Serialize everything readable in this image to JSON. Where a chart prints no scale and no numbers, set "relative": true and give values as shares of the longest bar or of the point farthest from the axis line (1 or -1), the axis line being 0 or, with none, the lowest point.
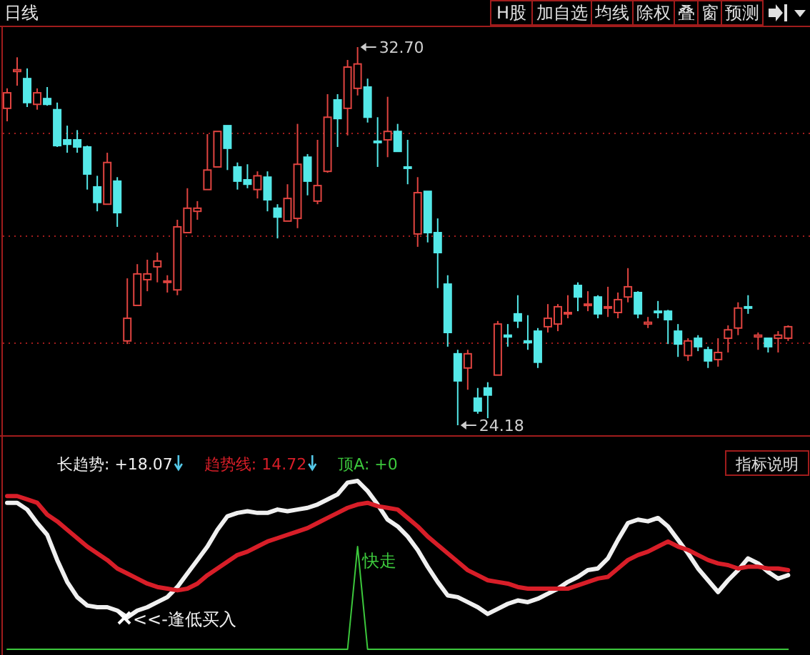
{
  "chart_data": [
    {
      "type": "candlestick",
      "title": "日线",
      "categories": [
        null,
        null,
        null,
        null,
        null,
        null,
        null,
        null,
        null,
        null,
        null,
        null,
        null,
        null,
        null,
        null,
        null,
        null,
        null,
        null,
        null,
        null,
        null,
        null,
        null,
        null,
        null,
        null,
        null,
        null,
        null,
        null,
        null,
        null,
        null,
        null,
        null,
        null,
        null,
        null,
        null,
        null,
        null,
        null,
        null,
        null,
        null,
        null,
        null,
        null,
        null,
        null,
        null,
        null,
        null,
        null,
        null,
        null,
        null,
        null,
        null,
        null,
        null,
        null,
        null,
        null,
        null,
        null,
        null,
        null,
        null,
        null,
        null,
        null,
        null,
        null,
        null,
        null,
        null
      ],
      "ohlc": [
        [
          31.32,
          31.77,
          31.03,
          31.67
        ],
        [
          32.15,
          32.47,
          31.83,
          32.19
        ],
        [
          31.99,
          32.22,
          31.35,
          31.45
        ],
        [
          31.41,
          31.77,
          31.29,
          31.67
        ],
        [
          31.54,
          31.8,
          31.38,
          31.41
        ],
        [
          31.29,
          31.45,
          30.45,
          30.48
        ],
        [
          30.61,
          30.93,
          30.32,
          30.51
        ],
        [
          30.61,
          30.83,
          30.32,
          30.45
        ],
        [
          30.45,
          30.48,
          29.49,
          29.84
        ],
        [
          29.55,
          29.8,
          29.0,
          29.2
        ],
        [
          29.16,
          30.32,
          29.16,
          30.1
        ],
        [
          29.68,
          29.77,
          28.65,
          28.97
        ],
        [
          26.08,
          27.49,
          26.01,
          26.59
        ],
        [
          26.88,
          27.81,
          26.88,
          27.59
        ],
        [
          27.46,
          27.91,
          27.2,
          27.59
        ],
        [
          27.75,
          28.07,
          27.4,
          27.88
        ],
        [
          27.4,
          27.56,
          27.17,
          27.43
        ],
        [
          27.23,
          28.81,
          27.11,
          28.65
        ],
        [
          28.52,
          29.52,
          28.52,
          29.07
        ],
        [
          29.0,
          29.23,
          28.81,
          29.07
        ],
        [
          29.49,
          30.74,
          29.49,
          29.93
        ],
        [
          30.0,
          30.8,
          30.0,
          30.8
        ],
        [
          30.93,
          30.93,
          29.93,
          30.42
        ],
        [
          30.0,
          30.1,
          29.49,
          29.68
        ],
        [
          29.71,
          30.06,
          29.52,
          29.61
        ],
        [
          29.49,
          29.9,
          29.29,
          29.8
        ],
        [
          29.77,
          29.9,
          29.0,
          29.26
        ],
        [
          29.07,
          29.16,
          28.39,
          28.87
        ],
        [
          28.78,
          29.61,
          28.78,
          29.29
        ],
        [
          28.84,
          30.97,
          28.62,
          30.06
        ],
        [
          30.22,
          30.29,
          29.36,
          29.68
        ],
        [
          29.23,
          30.61,
          29.16,
          29.58
        ],
        [
          29.9,
          31.64,
          29.87,
          31.12
        ],
        [
          31.51,
          31.64,
          30.45,
          31.09
        ],
        [
          31.32,
          32.41,
          30.71,
          32.25
        ],
        [
          31.77,
          32.7,
          31.61,
          32.32
        ],
        [
          31.8,
          31.99,
          31.0,
          31.12
        ],
        [
          30.58,
          31.12,
          30.0,
          30.55
        ],
        [
          30.61,
          31.58,
          30.22,
          30.8
        ],
        [
          30.8,
          30.97,
          30.35,
          30.35
        ],
        [
          30.0,
          30.61,
          29.61,
          29.97
        ],
        [
          28.49,
          29.77,
          28.2,
          29.42
        ],
        [
          29.45,
          29.45,
          28.3,
          28.52
        ],
        [
          28.52,
          28.84,
          27.27,
          28.07
        ],
        [
          27.36,
          27.56,
          25.95,
          26.27
        ],
        [
          25.79,
          25.88,
          24.18,
          25.18
        ],
        [
          25.47,
          25.88,
          24.98,
          25.79
        ],
        [
          24.79,
          25.02,
          24.44,
          24.5
        ],
        [
          25.02,
          25.15,
          24.34,
          24.86
        ],
        [
          25.31,
          26.53,
          25.31,
          26.46
        ],
        [
          26.21,
          26.46,
          25.95,
          26.17
        ],
        [
          26.69,
          27.11,
          26.37,
          26.53
        ],
        [
          26.08,
          26.66,
          25.88,
          26.04
        ],
        [
          26.3,
          26.37,
          25.47,
          25.6
        ],
        [
          26.4,
          26.91,
          26.27,
          26.59
        ],
        [
          26.46,
          26.91,
          26.3,
          26.85
        ],
        [
          26.69,
          27.11,
          26.59,
          26.72
        ],
        [
          27.33,
          27.4,
          26.75,
          27.07
        ],
        [
          26.88,
          27.2,
          26.75,
          26.91
        ],
        [
          27.07,
          27.11,
          26.59,
          26.69
        ],
        [
          26.82,
          27.3,
          26.62,
          26.85
        ],
        [
          26.72,
          27.17,
          26.59,
          27.01
        ],
        [
          27.07,
          27.72,
          26.95,
          27.3
        ],
        [
          27.17,
          27.2,
          26.59,
          26.69
        ],
        [
          26.46,
          26.62,
          26.37,
          26.5
        ],
        [
          26.75,
          26.98,
          26.59,
          26.72
        ],
        [
          26.75,
          26.78,
          26.01,
          26.56
        ],
        [
          26.3,
          26.46,
          25.72,
          26.01
        ],
        [
          25.75,
          26.14,
          25.63,
          26.08
        ],
        [
          26.14,
          26.21,
          25.85,
          25.95
        ],
        [
          25.88,
          25.95,
          25.47,
          25.63
        ],
        [
          25.66,
          26.14,
          25.5,
          25.82
        ],
        [
          26.14,
          26.43,
          25.82,
          26.33
        ],
        [
          26.37,
          26.95,
          26.21,
          26.82
        ],
        [
          26.85,
          27.11,
          26.69,
          26.82
        ],
        [
          26.17,
          26.27,
          25.88,
          26.21
        ],
        [
          26.14,
          26.14,
          25.82,
          25.95
        ],
        [
          26.14,
          26.3,
          25.82,
          26.21
        ],
        [
          26.14,
          26.43,
          26.08,
          26.4
        ]
      ],
      "colors": [
        "#e04440",
        "#e04440",
        "#54e8e8",
        "#e04440",
        "#54e8e8",
        "#54e8e8",
        "#54e8e8",
        "#54e8e8",
        "#54e8e8",
        "#54e8e8",
        "#e04440",
        "#54e8e8",
        "#e04440",
        "#e04440",
        "#e04440",
        "#e04440",
        "#e04440",
        "#e04440",
        "#e04440",
        "#e04440",
        "#e04440",
        "#e04440",
        "#54e8e8",
        "#54e8e8",
        "#54e8e8",
        "#e04440",
        "#54e8e8",
        "#54e8e8",
        "#e04440",
        "#e04440",
        "#54e8e8",
        "#e04440",
        "#e04440",
        "#54e8e8",
        "#e04440",
        "#e04440",
        "#54e8e8",
        "#54e8e8",
        "#e04440",
        "#54e8e8",
        "#54e8e8",
        "#e04440",
        "#54e8e8",
        "#54e8e8",
        "#54e8e8",
        "#54e8e8",
        "#e04440",
        "#54e8e8",
        "#54e8e8",
        "#e04440",
        "#54e8e8",
        "#54e8e8",
        "#54e8e8",
        "#54e8e8",
        "#e04440",
        "#e04440",
        "#e04440",
        "#54e8e8",
        "#e04440",
        "#54e8e8",
        "#e04440",
        "#e04440",
        "#e04440",
        "#54e8e8",
        "#e04440",
        "#54e8e8",
        "#54e8e8",
        "#54e8e8",
        "#e04440",
        "#54e8e8",
        "#54e8e8",
        "#e04440",
        "#e04440",
        "#e04440",
        "#54e8e8",
        "#e04440",
        "#54e8e8",
        "#e04440",
        "#e04440"
      ],
      "yticks": [
        {
          "value": 30.77,
          "label": null
        },
        {
          "value": 28.46,
          "label": null
        },
        {
          "value": 26.04,
          "label": null
        }
      ],
      "grid": "y",
      "annotations": [
        "32.70",
        "24.18",
        "H股",
        "加自选",
        "均线",
        "除权",
        "叠",
        "窗",
        "预测"
      ]
    },
    {
      "type": "line",
      "relative": true,
      "categories": [
        null,
        null,
        null,
        null,
        null,
        null,
        null,
        null,
        null,
        null,
        null,
        null,
        null,
        null,
        null,
        null,
        null,
        null,
        null,
        null,
        null,
        null,
        null,
        null,
        null,
        null,
        null,
        null,
        null,
        null,
        null,
        null,
        null,
        null,
        null,
        null,
        null,
        null,
        null,
        null,
        null,
        null,
        null,
        null,
        null,
        null,
        null,
        null,
        null,
        null,
        null,
        null,
        null,
        null,
        null,
        null,
        null,
        null,
        null,
        null,
        null,
        null,
        null,
        null,
        null,
        null,
        null,
        null,
        null,
        null,
        null,
        null,
        null,
        null,
        null,
        null,
        null,
        null,
        null
      ],
      "series": [
        {
          "name": "长趋势:",
          "color": "#f0f0f0",
          "values": [
            0.87,
            0.87,
            0.83,
            0.75,
            0.68,
            0.53,
            0.4,
            0.31,
            0.26,
            0.25,
            0.25,
            0.23,
            0.19,
            0.23,
            0.25,
            0.28,
            0.31,
            0.37,
            0.45,
            0.53,
            0.61,
            0.71,
            0.79,
            0.81,
            0.82,
            0.81,
            0.81,
            0.83,
            0.82,
            0.83,
            0.84,
            0.86,
            0.89,
            0.92,
            0.99,
            1,
            0.94,
            0.86,
            0.77,
            0.73,
            0.67,
            0.59,
            0.49,
            0.4,
            0.32,
            0.31,
            0.28,
            0.25,
            0.21,
            0.24,
            0.27,
            0.29,
            0.28,
            0.3,
            0.33,
            0.36,
            0.4,
            0.43,
            0.47,
            0.48,
            0.54,
            0.65,
            0.75,
            0.77,
            0.76,
            0.78,
            0.73,
            0.65,
            0.57,
            0.48,
            0.41,
            0.34,
            0.41,
            0.47,
            0.54,
            0.51,
            0.46,
            0.42,
            0.44
          ]
        },
        {
          "name": "趋势线:",
          "color": "#d81e28",
          "values": [
            0.91,
            0.91,
            0.89,
            0.87,
            0.8,
            0.76,
            0.71,
            0.66,
            0.61,
            0.57,
            0.53,
            0.48,
            0.45,
            0.42,
            0.39,
            0.37,
            0.36,
            0.35,
            0.36,
            0.39,
            0.44,
            0.48,
            0.52,
            0.56,
            0.58,
            0.61,
            0.64,
            0.66,
            0.68,
            0.7,
            0.72,
            0.75,
            0.78,
            0.81,
            0.84,
            0.86,
            0.87,
            0.85,
            0.84,
            0.83,
            0.78,
            0.73,
            0.67,
            0.62,
            0.57,
            0.52,
            0.47,
            0.44,
            0.41,
            0.4,
            0.39,
            0.37,
            0.36,
            0.36,
            0.36,
            0.36,
            0.36,
            0.38,
            0.4,
            0.42,
            0.43,
            0.48,
            0.53,
            0.56,
            0.58,
            0.61,
            0.64,
            0.61,
            0.59,
            0.56,
            0.53,
            0.51,
            0.5,
            0.48,
            0.49,
            0.49,
            0.48,
            0.48,
            0.47
          ]
        },
        {
          "name": "顶A:",
          "color": "#3cc83c",
          "values": [
            0,
            0,
            0,
            0,
            0,
            0,
            0,
            0,
            0,
            0,
            0,
            0,
            0,
            0,
            0,
            0,
            0,
            0,
            0,
            0,
            0,
            0,
            0,
            0,
            0,
            0,
            0,
            0,
            0,
            0,
            0,
            0,
            0,
            0,
            0,
            0.61,
            0,
            0,
            0,
            0,
            0,
            0,
            0,
            0,
            0,
            0,
            0,
            0,
            0,
            0,
            0,
            0,
            0,
            0,
            0,
            0,
            0,
            0,
            0,
            0,
            0,
            0,
            0,
            0,
            0,
            0,
            0,
            0,
            0,
            0,
            0,
            0,
            0,
            0,
            0,
            0,
            0,
            0,
            0
          ]
        }
      ],
      "annotations": [
        "+18.07",
        "14.72",
        "+0",
        "快走",
        "<<-逢低买入",
        "指标说明"
      ]
    }
  ]
}
